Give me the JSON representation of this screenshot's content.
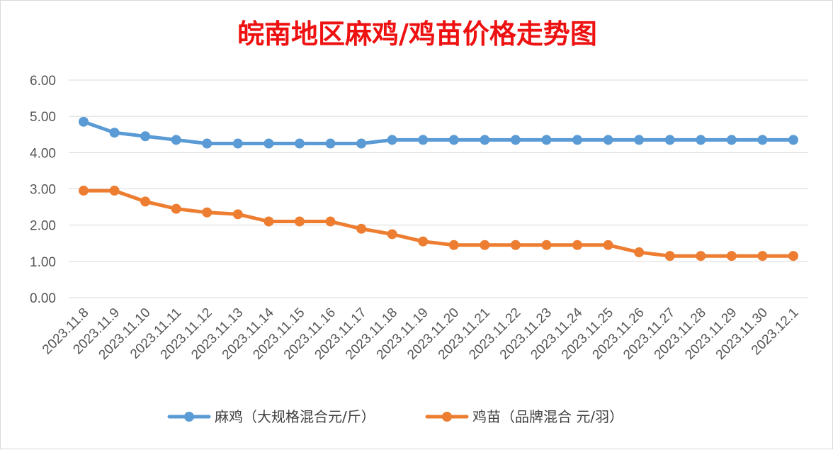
{
  "chart_data": {
    "type": "line",
    "title": "皖南地区麻鸡/鸡苗价格走势图",
    "xlabel": "",
    "ylabel": "",
    "ylim": [
      0,
      6
    ],
    "yticks": [
      "0.00",
      "1.00",
      "2.00",
      "3.00",
      "4.00",
      "5.00",
      "6.00"
    ],
    "categories": [
      "2023.11.8",
      "2023.11.9",
      "2023.11.10",
      "2023.11.11",
      "2023.11.12",
      "2023.11.13",
      "2023.11.14",
      "2023.11.15",
      "2023.11.16",
      "2023.11.17",
      "2023.11.18",
      "2023.11.19",
      "2023.11.20",
      "2023.11.21",
      "2023.11.22",
      "2023.11.23",
      "2023.11.24",
      "2023.11.25",
      "2023.11.26",
      "2023.11.27",
      "2023.11.28",
      "2023.11.29",
      "2023.11.30",
      "2023.12.1"
    ],
    "series": [
      {
        "name": "麻鸡（大规格混合元/斤）",
        "color": "#5b9bd5",
        "values": [
          4.85,
          4.55,
          4.45,
          4.35,
          4.25,
          4.25,
          4.25,
          4.25,
          4.25,
          4.25,
          4.35,
          4.35,
          4.35,
          4.35,
          4.35,
          4.35,
          4.35,
          4.35,
          4.35,
          4.35,
          4.35,
          4.35,
          4.35,
          4.35
        ]
      },
      {
        "name": "鸡苗（品牌混合 元/羽）",
        "color": "#ed7d31",
        "values": [
          2.95,
          2.95,
          2.65,
          2.45,
          2.35,
          2.3,
          2.1,
          2.1,
          2.1,
          1.9,
          1.75,
          1.55,
          1.45,
          1.45,
          1.45,
          1.45,
          1.45,
          1.45,
          1.25,
          1.15,
          1.15,
          1.15,
          1.15,
          1.15
        ]
      }
    ],
    "grid": true,
    "legend_position": "bottom"
  }
}
